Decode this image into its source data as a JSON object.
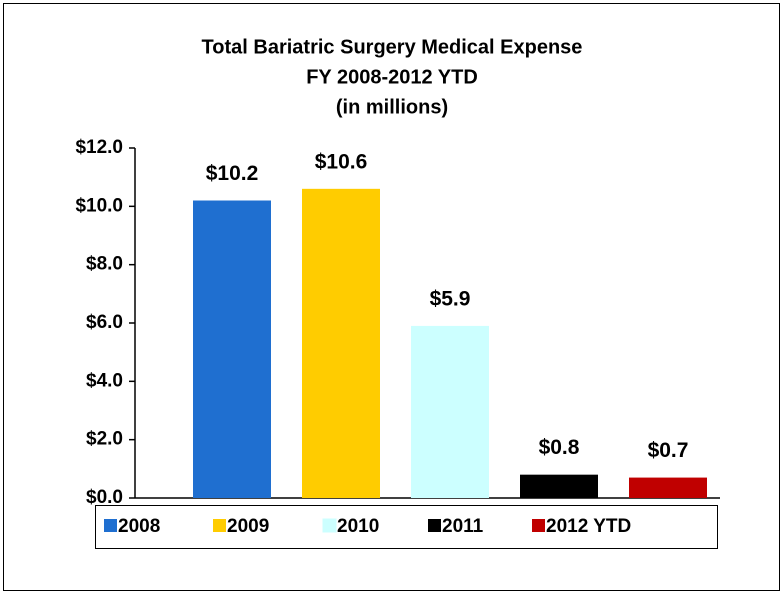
{
  "chart_data": {
    "type": "bar",
    "title": [
      "Total Bariatric Surgery Medical Expense",
      "FY 2008-2012  YTD",
      "(in millions)"
    ],
    "series": [
      {
        "name": "2008",
        "color": "#1f6fd0",
        "values": [
          10.2
        ],
        "value_labels": [
          "$10.2"
        ]
      },
      {
        "name": "2009",
        "color": "#ffcc00",
        "values": [
          10.6
        ],
        "value_labels": [
          "$10.6"
        ]
      },
      {
        "name": "2010",
        "color": "#ccffff",
        "values": [
          5.9
        ],
        "value_labels": [
          "$5.9"
        ]
      },
      {
        "name": "2011",
        "color": "#000000",
        "values": [
          0.8
        ],
        "value_labels": [
          "$0.8"
        ]
      },
      {
        "name": "2012 YTD",
        "color": "#c00000",
        "values": [
          0.7
        ],
        "value_labels": [
          "$0.7"
        ]
      }
    ],
    "ylim": [
      0,
      12
    ],
    "yticks": [
      {
        "value": 0,
        "label": "$0.0"
      },
      {
        "value": 2,
        "label": "$2.0"
      },
      {
        "value": 4,
        "label": "$4.0"
      },
      {
        "value": 6,
        "label": "$6.0"
      },
      {
        "value": 8,
        "label": "$8.0"
      },
      {
        "value": 10,
        "label": "$10.0"
      },
      {
        "value": 12,
        "label": "$12.0"
      }
    ],
    "grid": false,
    "legend": "bottom"
  }
}
